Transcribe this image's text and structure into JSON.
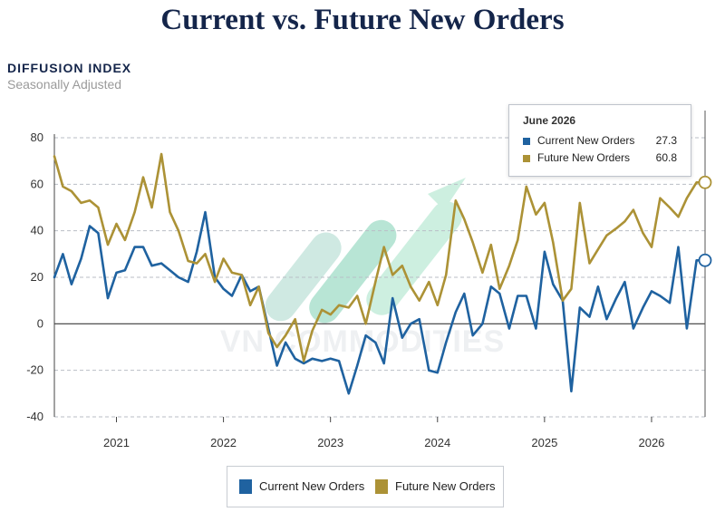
{
  "header": {
    "title": "Current vs. Future New Orders",
    "ylabel": "DIFFUSION INDEX",
    "subtitle": "Seasonally Adjusted"
  },
  "watermark": "VN COMMODITIES",
  "colors": {
    "current": "#1f62a0",
    "future": "#ac9236",
    "grid": "#b9bec6",
    "zero_line": "#3a3a3a"
  },
  "tooltip": {
    "date": "June 2026",
    "rows": [
      {
        "name": "Current New Orders",
        "value": "27.3"
      },
      {
        "name": "Future New Orders",
        "value": "60.8"
      }
    ]
  },
  "legend": {
    "items": [
      "Current New Orders",
      "Future New Orders"
    ]
  },
  "chart_data": {
    "type": "line",
    "title": "Current vs. Future New Orders",
    "ylabel": "DIFFUSION INDEX",
    "subtitle": "Seasonally Adjusted",
    "ylim": [
      -40,
      80
    ],
    "yticks": [
      -40,
      -20,
      0,
      20,
      40,
      60,
      80
    ],
    "xlim": [
      2020.42,
      2026.5
    ],
    "xticks": [
      {
        "x": 2021.0,
        "label": "2021"
      },
      {
        "x": 2022.0,
        "label": "2022"
      },
      {
        "x": 2023.0,
        "label": "2023"
      },
      {
        "x": 2024.0,
        "label": "2024"
      },
      {
        "x": 2025.0,
        "label": "2025"
      },
      {
        "x": 2026.0,
        "label": "2026"
      }
    ],
    "x": [
      2020.42,
      2020.5,
      2020.58,
      2020.67,
      2020.75,
      2020.83,
      2020.92,
      2021.0,
      2021.08,
      2021.17,
      2021.25,
      2021.33,
      2021.42,
      2021.5,
      2021.58,
      2021.67,
      2021.75,
      2021.83,
      2021.92,
      2022.0,
      2022.08,
      2022.17,
      2022.25,
      2022.33,
      2022.42,
      2022.5,
      2022.58,
      2022.67,
      2022.75,
      2022.83,
      2022.92,
      2023.0,
      2023.08,
      2023.17,
      2023.25,
      2023.33,
      2023.42,
      2023.5,
      2023.58,
      2023.67,
      2023.75,
      2023.83,
      2023.92,
      2024.0,
      2024.08,
      2024.17,
      2024.25,
      2024.33,
      2024.42,
      2024.5,
      2024.58,
      2024.67,
      2024.75,
      2024.83,
      2024.92,
      2025.0,
      2025.08,
      2025.17,
      2025.25,
      2025.33,
      2025.42,
      2025.5,
      2025.58,
      2025.67,
      2025.75,
      2025.83,
      2025.92,
      2026.0,
      2026.08,
      2026.17,
      2026.25,
      2026.33,
      2026.42,
      2026.5
    ],
    "series": [
      {
        "name": "Current New Orders",
        "color": "#1f62a0",
        "values": [
          20,
          30,
          17,
          28,
          42,
          39,
          11,
          22,
          23,
          33,
          33,
          25,
          26,
          23,
          20,
          18,
          31,
          48,
          20,
          15,
          12,
          21,
          14,
          16,
          -2,
          -18,
          -8,
          -15,
          -17,
          -15,
          -16,
          -15,
          -16,
          -30,
          -18,
          -5,
          -8,
          -17,
          11,
          -6,
          0,
          2,
          -20,
          -21,
          -8,
          5,
          13,
          -5,
          0,
          16,
          13,
          -2,
          12,
          12,
          -2,
          31,
          17,
          10,
          -29,
          7,
          3,
          16,
          2,
          11,
          18,
          -2,
          7,
          14,
          12,
          9,
          33,
          -2,
          27.3,
          27.3
        ]
      },
      {
        "name": "Future New Orders",
        "color": "#ac9236",
        "values": [
          72,
          59,
          57,
          52,
          53,
          50,
          34,
          43,
          36,
          48,
          63,
          50,
          73,
          48,
          40,
          27,
          26,
          30,
          18,
          28,
          22,
          21,
          8,
          16,
          -4,
          -10,
          -5,
          2,
          -16,
          -3,
          6,
          4,
          8,
          7,
          12,
          0,
          18,
          33,
          21,
          25,
          16,
          10,
          18,
          8,
          21,
          53,
          45,
          35,
          22,
          34,
          15,
          25,
          36,
          59,
          47,
          52,
          35,
          10,
          15,
          52,
          26,
          32,
          38,
          41,
          44,
          49,
          39,
          33,
          54,
          50,
          46,
          54,
          60.8,
          60.8
        ]
      }
    ],
    "marker_last": {
      "x": 2026.5,
      "current": 27.3,
      "future": 60.8
    },
    "grid": "horizontal-dashed",
    "legend_position": "bottom"
  }
}
